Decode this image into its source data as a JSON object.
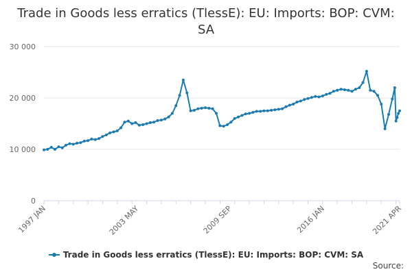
{
  "colors": {
    "series": "#1a7bb0",
    "grid": "#e6e6e6",
    "axis": "#ccd6eb",
    "text": "#666666"
  },
  "source_label": "Source:",
  "chart_data": {
    "type": "line",
    "title": "Trade in Goods less erratics (TlessE): EU: Imports: BOP: CVM: SA",
    "xlabel": "",
    "ylabel": "",
    "ylim": [
      0,
      30000
    ],
    "yticks": [
      0,
      10000,
      20000,
      30000
    ],
    "ytick_labels": [
      "0",
      "10 000",
      "20 000",
      "30 000"
    ],
    "xlim": [
      "1997-01",
      "2021-04"
    ],
    "xticks": [
      "1997-01",
      "2003-05",
      "2009-09",
      "2016-01",
      "2021-04"
    ],
    "xtick_labels": [
      "1997 JAN",
      "2003 MAY",
      "2009 SEP",
      "2016 JAN",
      "2021 APR"
    ],
    "grid": true,
    "legend": "bottom",
    "series": [
      {
        "name": "Trade in Goods less erratics (TlessE): EU: Imports: BOP: CVM: SA",
        "points": [
          [
            "1997-01",
            9900
          ],
          [
            "1997-04",
            10000
          ],
          [
            "1997-07",
            10400
          ],
          [
            "1997-10",
            10000
          ],
          [
            "1998-01",
            10500
          ],
          [
            "1998-04",
            10300
          ],
          [
            "1998-07",
            10800
          ],
          [
            "1998-10",
            11100
          ],
          [
            "1999-01",
            11000
          ],
          [
            "1999-04",
            11200
          ],
          [
            "1999-07",
            11300
          ],
          [
            "1999-10",
            11600
          ],
          [
            "2000-01",
            11700
          ],
          [
            "2000-04",
            12000
          ],
          [
            "2000-07",
            11900
          ],
          [
            "2000-10",
            12100
          ],
          [
            "2001-01",
            12500
          ],
          [
            "2001-04",
            12800
          ],
          [
            "2001-07",
            13200
          ],
          [
            "2001-10",
            13400
          ],
          [
            "2002-01",
            13600
          ],
          [
            "2002-04",
            14200
          ],
          [
            "2002-07",
            15300
          ],
          [
            "2002-10",
            15500
          ],
          [
            "2003-01",
            15000
          ],
          [
            "2003-04",
            15200
          ],
          [
            "2003-07",
            14700
          ],
          [
            "2003-10",
            14800
          ],
          [
            "2004-01",
            15000
          ],
          [
            "2004-04",
            15200
          ],
          [
            "2004-07",
            15300
          ],
          [
            "2004-10",
            15600
          ],
          [
            "2005-01",
            15700
          ],
          [
            "2005-04",
            15900
          ],
          [
            "2005-07",
            16300
          ],
          [
            "2005-10",
            17000
          ],
          [
            "2006-01",
            18500
          ],
          [
            "2006-04",
            20500
          ],
          [
            "2006-07",
            23500
          ],
          [
            "2006-10",
            21000
          ],
          [
            "2007-01",
            17500
          ],
          [
            "2007-04",
            17600
          ],
          [
            "2007-07",
            17900
          ],
          [
            "2007-10",
            18000
          ],
          [
            "2008-01",
            18100
          ],
          [
            "2008-04",
            18000
          ],
          [
            "2008-07",
            17900
          ],
          [
            "2008-10",
            17000
          ],
          [
            "2009-01",
            14600
          ],
          [
            "2009-04",
            14500
          ],
          [
            "2009-07",
            14800
          ],
          [
            "2009-10",
            15300
          ],
          [
            "2010-01",
            16000
          ],
          [
            "2010-04",
            16300
          ],
          [
            "2010-07",
            16600
          ],
          [
            "2010-10",
            16900
          ],
          [
            "2011-01",
            17000
          ],
          [
            "2011-04",
            17200
          ],
          [
            "2011-07",
            17400
          ],
          [
            "2011-10",
            17400
          ],
          [
            "2012-01",
            17500
          ],
          [
            "2012-04",
            17500
          ],
          [
            "2012-07",
            17600
          ],
          [
            "2012-10",
            17700
          ],
          [
            "2013-01",
            17800
          ],
          [
            "2013-04",
            17900
          ],
          [
            "2013-07",
            18300
          ],
          [
            "2013-10",
            18600
          ],
          [
            "2014-01",
            18800
          ],
          [
            "2014-04",
            19200
          ],
          [
            "2014-07",
            19400
          ],
          [
            "2014-10",
            19700
          ],
          [
            "2015-01",
            19900
          ],
          [
            "2015-04",
            20100
          ],
          [
            "2015-07",
            20300
          ],
          [
            "2015-10",
            20200
          ],
          [
            "2016-01",
            20400
          ],
          [
            "2016-04",
            20700
          ],
          [
            "2016-07",
            20900
          ],
          [
            "2016-10",
            21300
          ],
          [
            "2017-01",
            21500
          ],
          [
            "2017-04",
            21700
          ],
          [
            "2017-07",
            21600
          ],
          [
            "2017-10",
            21500
          ],
          [
            "2018-01",
            21300
          ],
          [
            "2018-04",
            21700
          ],
          [
            "2018-07",
            22000
          ],
          [
            "2018-10",
            23000
          ],
          [
            "2019-01",
            25200
          ],
          [
            "2019-04",
            21500
          ],
          [
            "2019-07",
            21300
          ],
          [
            "2019-10",
            20500
          ],
          [
            "2020-01",
            18800
          ],
          [
            "2020-04",
            14000
          ],
          [
            "2020-07",
            16800
          ],
          [
            "2020-10",
            19800
          ],
          [
            "2020-12",
            22000
          ],
          [
            "2021-01",
            15500
          ],
          [
            "2021-02",
            16200
          ],
          [
            "2021-03",
            17000
          ],
          [
            "2021-04",
            17500
          ]
        ]
      }
    ]
  }
}
